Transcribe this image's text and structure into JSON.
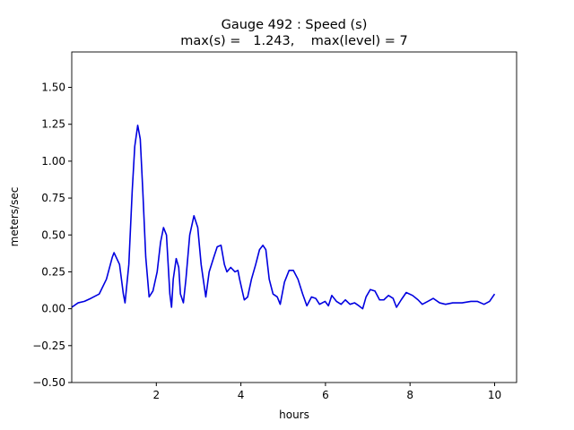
{
  "chart_data": {
    "type": "line",
    "title": "Gauge 492 : Speed (s)",
    "subtitle": "max(s) =   1.243,    max(level) = 7",
    "x_label": "hours",
    "y_label": "meters/sec",
    "color": "#0000e0",
    "x": [
      0.0,
      0.15,
      0.3,
      0.45,
      0.65,
      0.82,
      0.96,
      1.0,
      1.13,
      1.22,
      1.26,
      1.35,
      1.43,
      1.49,
      1.56,
      1.62,
      1.68,
      1.75,
      1.83,
      1.92,
      2.02,
      2.1,
      2.17,
      2.24,
      2.28,
      2.32,
      2.36,
      2.4,
      2.47,
      2.53,
      2.57,
      2.64,
      2.7,
      2.79,
      2.89,
      2.98,
      3.06,
      3.17,
      3.25,
      3.36,
      3.44,
      3.53,
      3.61,
      3.67,
      3.76,
      3.86,
      3.93,
      3.97,
      4.08,
      4.16,
      4.25,
      4.35,
      4.44,
      4.52,
      4.59,
      4.67,
      4.76,
      4.86,
      4.93,
      5.03,
      5.14,
      5.24,
      5.35,
      5.46,
      5.56,
      5.67,
      5.77,
      5.86,
      5.99,
      6.07,
      6.15,
      6.26,
      6.37,
      6.47,
      6.58,
      6.69,
      6.79,
      6.88,
      6.96,
      7.06,
      7.17,
      7.28,
      7.38,
      7.49,
      7.6,
      7.68,
      7.79,
      7.91,
      8.06,
      8.19,
      8.29,
      8.42,
      8.55,
      8.7,
      8.84,
      9.01,
      9.23,
      9.44,
      9.59,
      9.75,
      9.88,
      10.0
    ],
    "values": [
      0.01,
      0.04,
      0.05,
      0.07,
      0.1,
      0.2,
      0.35,
      0.38,
      0.3,
      0.1,
      0.04,
      0.3,
      0.8,
      1.1,
      1.243,
      1.15,
      0.8,
      0.35,
      0.08,
      0.12,
      0.25,
      0.45,
      0.55,
      0.5,
      0.3,
      0.1,
      0.01,
      0.2,
      0.34,
      0.28,
      0.1,
      0.04,
      0.2,
      0.5,
      0.63,
      0.55,
      0.3,
      0.08,
      0.25,
      0.35,
      0.42,
      0.43,
      0.3,
      0.25,
      0.28,
      0.25,
      0.26,
      0.2,
      0.06,
      0.08,
      0.2,
      0.3,
      0.4,
      0.43,
      0.4,
      0.2,
      0.1,
      0.08,
      0.03,
      0.18,
      0.26,
      0.26,
      0.2,
      0.1,
      0.02,
      0.08,
      0.07,
      0.03,
      0.05,
      0.02,
      0.09,
      0.05,
      0.03,
      0.06,
      0.03,
      0.04,
      0.02,
      0.0,
      0.08,
      0.13,
      0.12,
      0.06,
      0.06,
      0.09,
      0.07,
      0.01,
      0.06,
      0.11,
      0.09,
      0.06,
      0.03,
      0.05,
      0.07,
      0.04,
      0.03,
      0.04,
      0.04,
      0.05,
      0.05,
      0.03,
      0.05,
      0.1
    ],
    "xlim": [
      0,
      10.52
    ],
    "ylim": [
      -0.5,
      1.74
    ],
    "xticks": [
      2,
      4,
      6,
      8,
      10
    ],
    "yticks": [
      {
        "value": -0.5,
        "label": "−0.50"
      },
      {
        "value": -0.25,
        "label": "−0.25"
      },
      {
        "value": 0,
        "label": "0.00"
      },
      {
        "value": 0.25,
        "label": "0.25"
      },
      {
        "value": 0.5,
        "label": "0.50"
      },
      {
        "value": 0.75,
        "label": "0.75"
      },
      {
        "value": 1,
        "label": "1.00"
      },
      {
        "value": 1.25,
        "label": "1.25"
      },
      {
        "value": 1.5,
        "label": "1.50"
      }
    ],
    "grid": false
  }
}
